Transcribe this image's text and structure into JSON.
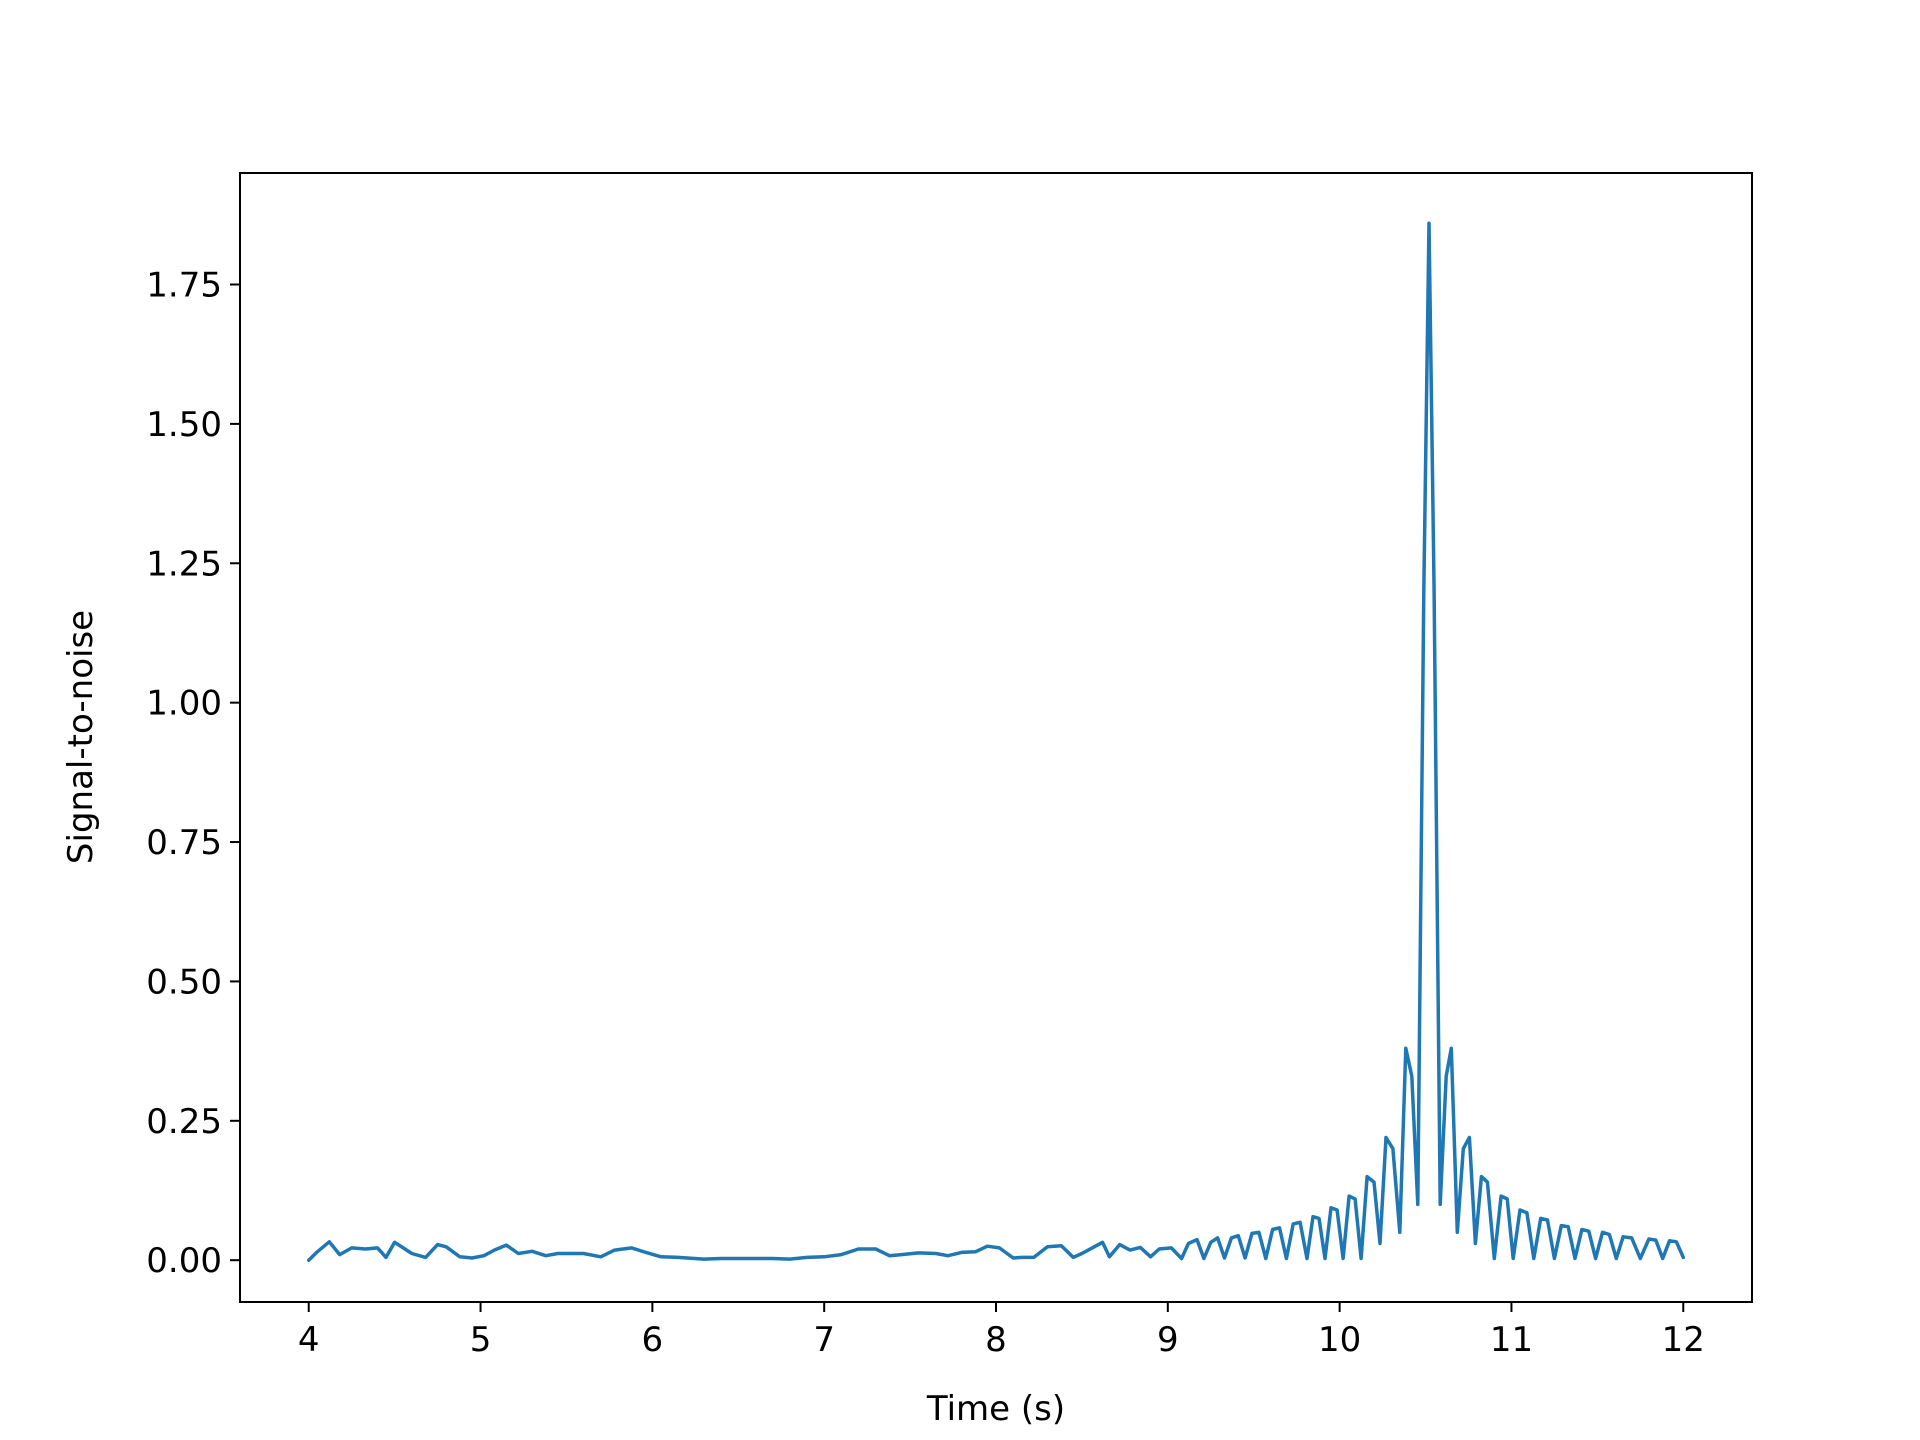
{
  "chart_data": {
    "type": "line",
    "title": "",
    "xlabel": "Time (s)",
    "ylabel": "Signal-to-noise",
    "xlim": [
      3.6,
      12.4
    ],
    "ylim": [
      -0.075,
      1.95
    ],
    "xticks": [
      4,
      5,
      6,
      7,
      8,
      9,
      10,
      11,
      12
    ],
    "xtick_labels": [
      "4",
      "5",
      "6",
      "7",
      "8",
      "9",
      "10",
      "11",
      "12"
    ],
    "yticks": [
      0.0,
      0.25,
      0.5,
      0.75,
      1.0,
      1.25,
      1.5,
      1.75
    ],
    "ytick_labels": [
      "0.00",
      "0.25",
      "0.50",
      "0.75",
      "1.00",
      "1.25",
      "1.50",
      "1.75"
    ],
    "grid": false,
    "legend": "none",
    "line_color": "#1f77b4",
    "series": [
      {
        "x": [
          4.0,
          4.05,
          4.12,
          4.18,
          4.25,
          4.33,
          4.4,
          4.45,
          4.5,
          4.55,
          4.6,
          4.68,
          4.75,
          4.8,
          4.88,
          4.95,
          5.02,
          5.08,
          5.15,
          5.22,
          5.3,
          5.38,
          5.45,
          5.52,
          5.6,
          5.7,
          5.78,
          5.88,
          5.95,
          6.05,
          6.15,
          6.3,
          6.4,
          6.55,
          6.7,
          6.8,
          6.9,
          7.0,
          7.1,
          7.2,
          7.3,
          7.38,
          7.45,
          7.55,
          7.65,
          7.72,
          7.8,
          7.88,
          7.95,
          8.02,
          8.1,
          8.15,
          8.22,
          8.3,
          8.38,
          8.45,
          8.5,
          8.56,
          8.62,
          8.66,
          8.72,
          8.78,
          8.84,
          8.9,
          8.95,
          9.02,
          9.08,
          9.12,
          9.17,
          9.21,
          9.25,
          9.29,
          9.33,
          9.37,
          9.41,
          9.45,
          9.49,
          9.53,
          9.57,
          9.61,
          9.65,
          9.69,
          9.73,
          9.77,
          9.81,
          9.845,
          9.88,
          9.915,
          9.95,
          9.985,
          10.02,
          10.055,
          10.09,
          10.125,
          10.16,
          10.2,
          10.235,
          10.27,
          10.31,
          10.35,
          10.385,
          10.42,
          10.455,
          10.49,
          10.52,
          10.55,
          10.585,
          10.62,
          10.65,
          10.685,
          10.72,
          10.755,
          10.79,
          10.825,
          10.86,
          10.9,
          10.94,
          10.975,
          11.01,
          11.05,
          11.09,
          11.13,
          11.17,
          11.21,
          11.25,
          11.29,
          11.33,
          11.37,
          11.41,
          11.45,
          11.49,
          11.53,
          11.57,
          11.61,
          11.65,
          11.7,
          11.75,
          11.8,
          11.84,
          11.88,
          11.92,
          11.96,
          12.0
        ],
        "y": [
          0.0,
          0.015,
          0.033,
          0.01,
          0.022,
          0.02,
          0.022,
          0.005,
          0.032,
          0.022,
          0.012,
          0.005,
          0.028,
          0.024,
          0.006,
          0.004,
          0.008,
          0.018,
          0.027,
          0.012,
          0.016,
          0.008,
          0.012,
          0.012,
          0.012,
          0.006,
          0.018,
          0.022,
          0.015,
          0.006,
          0.005,
          0.002,
          0.003,
          0.003,
          0.003,
          0.002,
          0.005,
          0.006,
          0.01,
          0.02,
          0.02,
          0.008,
          0.01,
          0.013,
          0.012,
          0.008,
          0.014,
          0.015,
          0.025,
          0.022,
          0.004,
          0.005,
          0.005,
          0.024,
          0.026,
          0.005,
          0.012,
          0.022,
          0.032,
          0.006,
          0.028,
          0.018,
          0.023,
          0.006,
          0.02,
          0.022,
          0.003,
          0.03,
          0.037,
          0.003,
          0.032,
          0.04,
          0.004,
          0.04,
          0.044,
          0.004,
          0.048,
          0.05,
          0.003,
          0.055,
          0.058,
          0.003,
          0.065,
          0.068,
          0.003,
          0.078,
          0.075,
          0.003,
          0.094,
          0.09,
          0.003,
          0.115,
          0.11,
          0.003,
          0.15,
          0.14,
          0.03,
          0.22,
          0.2,
          0.05,
          0.38,
          0.33,
          0.1,
          1.2,
          1.86,
          1.2,
          0.1,
          0.33,
          0.38,
          0.05,
          0.2,
          0.22,
          0.03,
          0.15,
          0.14,
          0.003,
          0.115,
          0.11,
          0.003,
          0.09,
          0.085,
          0.003,
          0.075,
          0.072,
          0.003,
          0.062,
          0.06,
          0.003,
          0.055,
          0.052,
          0.003,
          0.05,
          0.046,
          0.003,
          0.042,
          0.04,
          0.003,
          0.038,
          0.036,
          0.003,
          0.035,
          0.033,
          0.005
        ]
      }
    ]
  }
}
